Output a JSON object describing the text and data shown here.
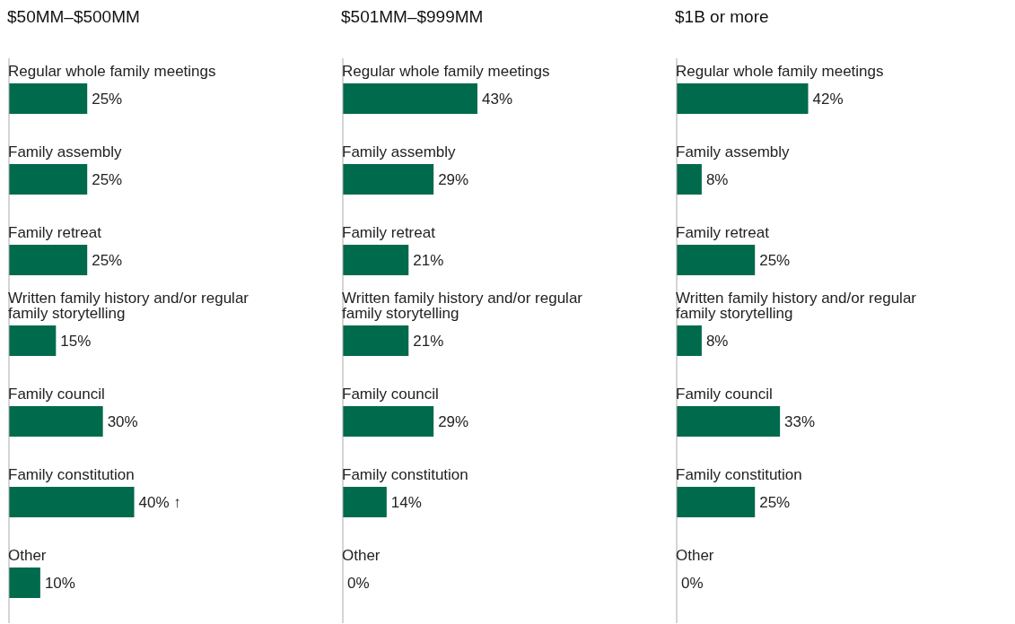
{
  "chart_data": [
    {
      "type": "bar",
      "orientation": "horizontal",
      "title": "$50MM–$500MM",
      "categories": [
        "Regular whole family meetings",
        "Family assembly",
        "Family retreat",
        "Written family history and/or regular family storytelling",
        "Family council",
        "Family constitution",
        "Other"
      ],
      "values": [
        25,
        25,
        25,
        15,
        30,
        40,
        10
      ],
      "value_labels": [
        "25%",
        "25%",
        "25%",
        "15%",
        "30%",
        "40% ↑",
        "10%"
      ],
      "color": "#006a4d"
    },
    {
      "type": "bar",
      "orientation": "horizontal",
      "title": "$501MM–$999MM",
      "categories": [
        "Regular whole family meetings",
        "Family assembly",
        "Family retreat",
        "Written family history and/or regular family storytelling",
        "Family council",
        "Family constitution",
        "Other"
      ],
      "values": [
        43,
        29,
        21,
        21,
        29,
        14,
        0
      ],
      "value_labels": [
        "43%",
        "29%",
        "21%",
        "21%",
        "29%",
        "14%",
        "0%"
      ],
      "color": "#006a4d"
    },
    {
      "type": "bar",
      "orientation": "horizontal",
      "title": "$1B or more",
      "categories": [
        "Regular whole family meetings",
        "Family assembly",
        "Family retreat",
        "Written family history and/or regular family storytelling",
        "Family council",
        "Family constitution",
        "Other"
      ],
      "values": [
        42,
        8,
        25,
        8,
        33,
        25,
        0
      ],
      "value_labels": [
        "42%",
        "8%",
        "25%",
        "8%",
        "33%",
        "25%",
        "0%"
      ],
      "color": "#006a4d"
    }
  ]
}
